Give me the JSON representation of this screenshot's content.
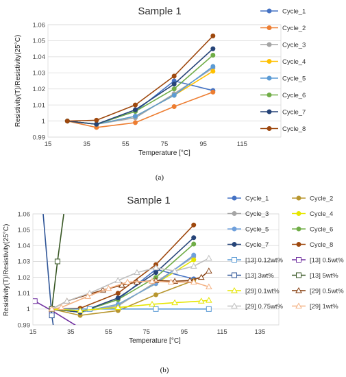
{
  "chart_data": [
    {
      "type": "line",
      "title": "Sample 1",
      "caption": "(a)",
      "xlabel": "Temperature [°C]",
      "ylabel": "Resistivity(T)/Resistivity(25°C)",
      "xlim": [
        15,
        135
      ],
      "ylim": [
        0.99,
        1.06
      ],
      "xticks": [
        15,
        35,
        55,
        75,
        95,
        115
      ],
      "yticks": [
        0.99,
        1,
        1.01,
        1.02,
        1.03,
        1.04,
        1.05,
        1.06
      ],
      "ytick_labels": [
        "0.99",
        "1",
        "1.01",
        "1.02",
        "1.03",
        "1.04",
        "1.05",
        "1.06"
      ],
      "grid": true,
      "legend_position": "right",
      "series": [
        {
          "name": "Cycle_1",
          "color": "#4472c4",
          "marker": "circle",
          "x": [
            25,
            40,
            60,
            80,
            100
          ],
          "y": [
            1.0,
            0.998,
            1.006,
            1.025,
            1.019
          ]
        },
        {
          "name": "Cycle_2",
          "color": "#ed7d31",
          "marker": "circle",
          "x": [
            25,
            40,
            60,
            80,
            100
          ],
          "y": [
            1.0,
            0.996,
            0.999,
            1.009,
            1.018
          ]
        },
        {
          "name": "Cycle_3",
          "color": "#a5a5a5",
          "marker": "circle",
          "x": [
            25,
            40,
            60,
            80,
            100
          ],
          "y": [
            1.0,
            0.998,
            1.002,
            1.017,
            1.033
          ]
        },
        {
          "name": "Cycle_4",
          "color": "#ffc000",
          "marker": "circle",
          "x": [
            25,
            40,
            60,
            80,
            100
          ],
          "y": [
            1.0,
            0.998,
            1.003,
            1.016,
            1.031
          ]
        },
        {
          "name": "Cycle_5",
          "color": "#5b9bd5",
          "marker": "circle",
          "x": [
            25,
            40,
            60,
            80,
            100
          ],
          "y": [
            1.0,
            0.998,
            1.003,
            1.016,
            1.034
          ]
        },
        {
          "name": "Cycle_6",
          "color": "#70ad47",
          "marker": "circle",
          "x": [
            25,
            40,
            60,
            80,
            100
          ],
          "y": [
            1.0,
            0.998,
            1.006,
            1.02,
            1.041
          ]
        },
        {
          "name": "Cycle_7",
          "color": "#264478",
          "marker": "circle",
          "x": [
            25,
            40,
            60,
            80,
            100
          ],
          "y": [
            1.0,
            0.998,
            1.007,
            1.023,
            1.045
          ]
        },
        {
          "name": "Cycle_8",
          "color": "#9e480e",
          "marker": "circle",
          "x": [
            25,
            40,
            60,
            80,
            100
          ],
          "y": [
            1.0,
            1.0005,
            1.01,
            1.028,
            1.053
          ]
        }
      ]
    },
    {
      "type": "line",
      "title": "Sample 1",
      "caption": "(b)",
      "xlabel": "Temperature [°C]",
      "ylabel": "Resistivity(T)/Resistivity(25°C)",
      "xlim": [
        15,
        145
      ],
      "ylim": [
        0.99,
        1.06
      ],
      "xticks": [
        15,
        35,
        55,
        75,
        95,
        115,
        135
      ],
      "yticks": [
        0.99,
        1,
        1.01,
        1.02,
        1.03,
        1.04,
        1.05,
        1.06
      ],
      "ytick_labels": [
        "0.99",
        "1",
        "1.01",
        "1.02",
        "1.03",
        "1.04",
        "1.05",
        "1.06"
      ],
      "grid": true,
      "legend_position": "right",
      "series": [
        {
          "name": "Cycle_1",
          "color": "#4472c4",
          "marker": "circle",
          "x": [
            25,
            40,
            60,
            80,
            100
          ],
          "y": [
            1.0,
            0.998,
            1.006,
            1.025,
            1.019
          ]
        },
        {
          "name": "Cycle_2",
          "color": "#b8962e",
          "marker": "circle",
          "x": [
            25,
            40,
            60,
            80,
            100
          ],
          "y": [
            1.0,
            0.996,
            0.999,
            1.009,
            1.018
          ]
        },
        {
          "name": "Cycle_3",
          "color": "#a5a5a5",
          "marker": "circle",
          "x": [
            25,
            40,
            60,
            80,
            100
          ],
          "y": [
            1.0,
            0.998,
            1.002,
            1.017,
            1.033
          ]
        },
        {
          "name": "Cycle_4",
          "color": "#e6e600",
          "marker": "circle",
          "x": [
            25,
            40,
            60,
            80,
            100
          ],
          "y": [
            1.0,
            0.998,
            1.003,
            1.016,
            1.031
          ]
        },
        {
          "name": "Cycle_5",
          "color": "#6fa0dc",
          "marker": "circle",
          "x": [
            25,
            40,
            60,
            80,
            100
          ],
          "y": [
            1.0,
            0.998,
            1.003,
            1.016,
            1.034
          ]
        },
        {
          "name": "Cycle_6",
          "color": "#70ad47",
          "marker": "circle",
          "x": [
            25,
            40,
            60,
            80,
            100
          ],
          "y": [
            1.0,
            0.998,
            1.006,
            1.02,
            1.041
          ]
        },
        {
          "name": "Cycle_7",
          "color": "#264478",
          "marker": "circle",
          "x": [
            25,
            40,
            60,
            80,
            100
          ],
          "y": [
            1.0,
            0.998,
            1.007,
            1.023,
            1.045
          ]
        },
        {
          "name": "Cycle_8",
          "color": "#9e480e",
          "marker": "circle",
          "x": [
            25,
            40,
            60,
            80,
            100
          ],
          "y": [
            1.0,
            1.0005,
            1.01,
            1.028,
            1.053
          ]
        },
        {
          "name": "[13] 0.12wt%",
          "color": "#5b9bd5",
          "marker": "square",
          "x": [
            25,
            45,
            80,
            108
          ],
          "y": [
            1.0,
            1.0,
            1.0,
            1.0
          ]
        },
        {
          "name": "[13] 0.5wt%",
          "color": "#7030a0",
          "marker": "square",
          "x": [
            16,
            25,
            40
          ],
          "y": [
            1.005,
            0.999,
            0.988
          ]
        },
        {
          "name": "[13] 3wt%",
          "color": "#2f5597",
          "marker": "square",
          "x": [
            20,
            25,
            30
          ],
          "y": [
            1.066,
            0.996,
            0.955
          ]
        },
        {
          "name": "[13] 5wt%",
          "color": "#375623",
          "marker": "square",
          "x": [
            25,
            28,
            33
          ],
          "y": [
            1.0,
            1.03,
            1.075
          ]
        },
        {
          "name": "[29] 0.1wt%",
          "color": "#e6e600",
          "marker": "triangle",
          "x": [
            25,
            40,
            60,
            78,
            90,
            104,
            108
          ],
          "y": [
            1.0,
            0.999,
            1.001,
            1.003,
            1.004,
            1.005,
            1.0055
          ]
        },
        {
          "name": "[29] 0.5wt%",
          "color": "#843c0c",
          "marker": "triangle",
          "x": [
            25,
            33,
            52,
            62,
            70,
            80,
            90,
            98,
            104,
            108
          ],
          "y": [
            1.0,
            1.005,
            1.012,
            1.015,
            1.017,
            1.018,
            1.0175,
            1.018,
            1.02,
            1.024
          ]
        },
        {
          "name": "[29] 0.75wt%",
          "color": "#bfbfbf",
          "marker": "triangle",
          "x": [
            25,
            33,
            45,
            60,
            70,
            80,
            90,
            100,
            108
          ],
          "y": [
            1.0,
            1.005,
            1.01,
            1.018,
            1.023,
            1.026,
            1.024,
            1.027,
            1.032
          ]
        },
        {
          "name": "[29] 1wt%",
          "color": "#f4b183",
          "marker": "triangle",
          "x": [
            25,
            30,
            44,
            55,
            65,
            78,
            88,
            100,
            108
          ],
          "y": [
            1.0,
            1.001,
            1.008,
            1.013,
            1.017,
            1.0175,
            1.017,
            1.017,
            1.014
          ]
        }
      ]
    }
  ]
}
